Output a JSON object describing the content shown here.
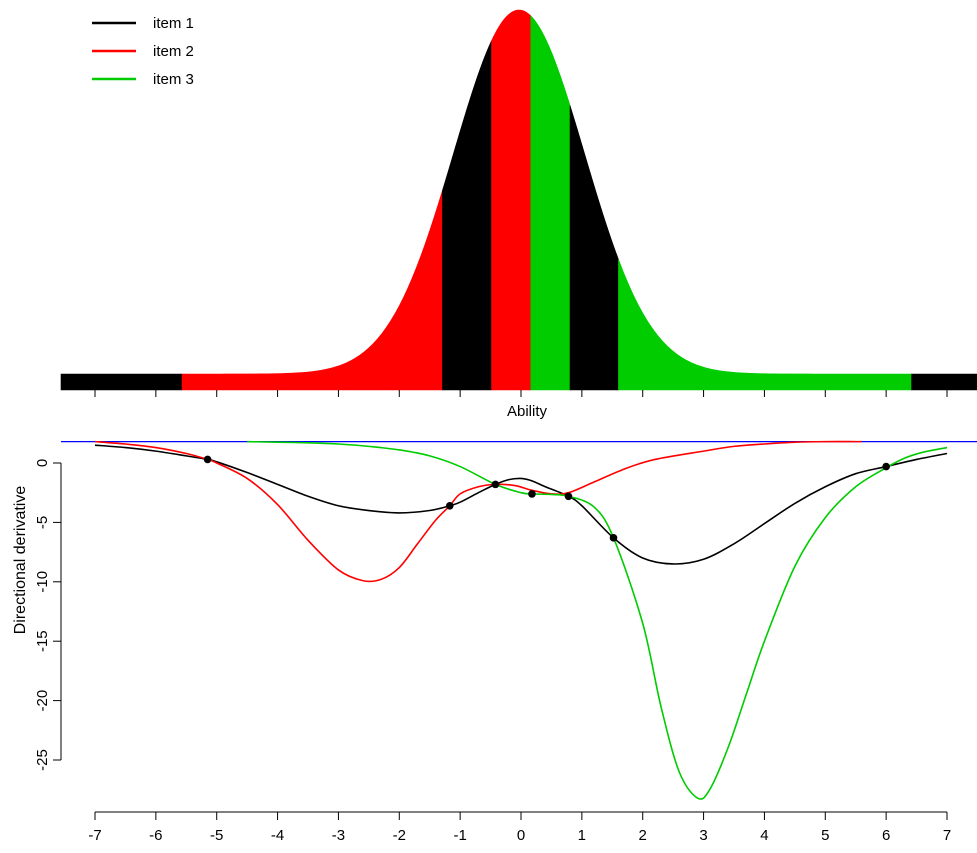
{
  "chart_data": [
    {
      "type": "area",
      "description_of_panel": "Normal ability density shaded by item",
      "xlabel": "Ability",
      "xlim": [
        -7,
        7
      ],
      "legend_position": "top-left",
      "legend": [
        {
          "label": "item 1",
          "color": "#000000"
        },
        {
          "label": "item 2",
          "color": "#ff0000"
        },
        {
          "label": "item 3",
          "color": "#00cc00"
        }
      ],
      "segments": [
        {
          "from": -7,
          "to": -5.15,
          "item": "item 1"
        },
        {
          "from": -5.15,
          "to": -1.17,
          "item": "item 2"
        },
        {
          "from": -1.17,
          "to": -0.42,
          "item": "item 1"
        },
        {
          "from": -0.42,
          "to": 0.18,
          "item": "item 2"
        },
        {
          "from": 0.18,
          "to": 0.78,
          "item": "item 3"
        },
        {
          "from": 0.78,
          "to": 1.52,
          "item": "item 1"
        },
        {
          "from": 1.52,
          "to": 6.0,
          "item": "item 3"
        },
        {
          "from": 6.0,
          "to": 7,
          "item": "item 1"
        }
      ],
      "density": {
        "mean": 0,
        "sd": 1
      }
    },
    {
      "type": "line",
      "ylabel": "Directional derivative",
      "xlim": [
        -7,
        7
      ],
      "ylim": [
        -28,
        2
      ],
      "x_ticks": [
        "-7",
        "-6",
        "-5",
        "-4",
        "-3",
        "-2",
        "-1",
        "0",
        "1",
        "2",
        "3",
        "4",
        "5",
        "6",
        "7"
      ],
      "y_ticks": [
        "0",
        "-5",
        "-10",
        "-15",
        "-20",
        "-25"
      ],
      "hline": {
        "y": 1.8,
        "color": "#0000ff"
      },
      "series": [
        {
          "name": "item 1",
          "color": "#000000",
          "x": [
            -7,
            -6.5,
            -6,
            -5.5,
            -5.15,
            -5,
            -4.5,
            -4,
            -3.5,
            -3,
            -2.5,
            -2,
            -1.5,
            -1.17,
            -1,
            -0.7,
            -0.42,
            -0.2,
            0,
            0.18,
            0.4,
            0.78,
            1,
            1.52,
            2,
            2.5,
            3,
            3.5,
            4,
            4.5,
            5,
            5.5,
            6,
            6.5,
            7
          ],
          "y": [
            1.5,
            1.3,
            1.0,
            0.6,
            0.3,
            0.1,
            -0.8,
            -1.8,
            -2.8,
            -3.6,
            -4.0,
            -4.2,
            -4.0,
            -3.6,
            -3.3,
            -2.5,
            -1.8,
            -1.4,
            -1.3,
            -1.5,
            -2.0,
            -2.8,
            -3.6,
            -6.3,
            -8.0,
            -8.5,
            -8.1,
            -6.8,
            -5.1,
            -3.4,
            -2.0,
            -0.9,
            -0.3,
            0.3,
            0.8
          ]
        },
        {
          "name": "item 2",
          "color": "#ff0000",
          "x": [
            -7,
            -6.5,
            -6,
            -5.5,
            -5.15,
            -5,
            -4.5,
            -4,
            -3.5,
            -3,
            -2.6,
            -2.3,
            -2.0,
            -1.7,
            -1.4,
            -1.17,
            -1.0,
            -0.7,
            -0.42,
            -0.1,
            0.18,
            0.5,
            0.78,
            1.2,
            1.7,
            2.2,
            3,
            3.5,
            4,
            4.5,
            5,
            5.5,
            5.6
          ],
          "y": [
            1.8,
            1.6,
            1.3,
            0.8,
            0.3,
            0.0,
            -1.3,
            -3.5,
            -6.5,
            -9.0,
            -9.9,
            -9.8,
            -8.8,
            -6.8,
            -4.8,
            -3.6,
            -2.6,
            -2.0,
            -1.8,
            -1.9,
            -2.3,
            -2.6,
            -2.5,
            -1.6,
            -0.5,
            0.3,
            1.0,
            1.4,
            1.6,
            1.75,
            1.8,
            1.8,
            1.8
          ]
        },
        {
          "name": "item 3",
          "color": "#00cc00",
          "x": [
            -4.5,
            -4,
            -3.5,
            -3,
            -2.5,
            -2,
            -1.5,
            -1,
            -0.42,
            0,
            0.18,
            0.5,
            0.78,
            1.2,
            1.52,
            2,
            2.3,
            2.6,
            2.9,
            3.1,
            3.4,
            3.7,
            4,
            4.5,
            5,
            5.5,
            6,
            6.3,
            6.6,
            7
          ],
          "y": [
            1.8,
            1.75,
            1.7,
            1.6,
            1.4,
            1.1,
            0.6,
            -0.3,
            -1.8,
            -2.5,
            -2.6,
            -2.65,
            -2.8,
            -3.7,
            -6.3,
            -13.5,
            -20.5,
            -26.0,
            -28.2,
            -27.5,
            -24.0,
            -19.5,
            -15.0,
            -8.7,
            -4.6,
            -2.0,
            -0.4,
            0.4,
            0.9,
            1.3
          ]
        }
      ],
      "points": {
        "x": [
          -5.15,
          -1.17,
          -0.42,
          0.18,
          0.78,
          1.52,
          6.0
        ],
        "y": [
          0.3,
          -3.6,
          -1.8,
          -2.6,
          -2.8,
          -6.3,
          -0.3
        ]
      }
    }
  ]
}
